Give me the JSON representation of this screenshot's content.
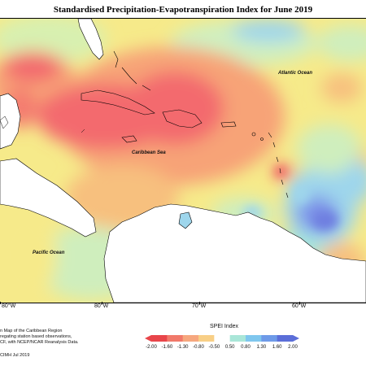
{
  "title": "Standardised Precipitation-Evapotranspiration Index for June 2019",
  "labels": {
    "atlantic": "Atlantic Ocean",
    "caribbean": "Caribbean Sea",
    "pacific": "Pacific Ocean"
  },
  "longitudes": [
    "80°W",
    "80°W",
    "70°W",
    "60°W"
  ],
  "footer": [
    "n Map of the Caribbean Region",
    "regating station based observations,",
    "CF, with NCEP/NCAR Reanalysis Data."
  ],
  "credit": "CIMH Jul 2019",
  "legend": {
    "title": "SPEI Index",
    "ticks": [
      "-2.00",
      "-1.60",
      "-1.30",
      "-0.80",
      "-0.50",
      "0.50",
      "0.80",
      "1.30",
      "1.60",
      "2.00"
    ],
    "colors": [
      "#e8454a",
      "#f1796a",
      "#f6a77e",
      "#f8cf86",
      "#f6ee90",
      "#d8f0a8",
      "#a9e6d8",
      "#7fc7ee",
      "#6e9ae8",
      "#5b6ed8"
    ]
  },
  "colors": {
    "dry_extreme": "#f36a6e",
    "dry": "#f7a377",
    "neutral": "#f6ea8a",
    "wet_light": "#cfeebd",
    "wet": "#9ed6ec",
    "wet_strong": "#7d93e8",
    "land": "#ffffff"
  }
}
